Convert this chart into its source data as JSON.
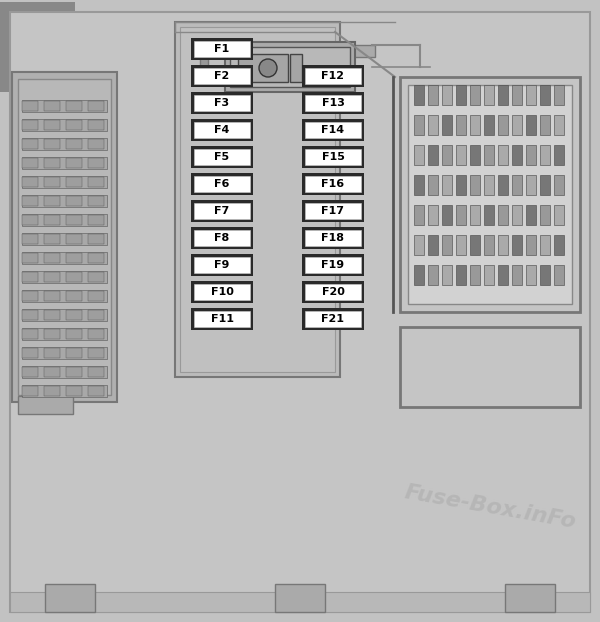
{
  "bg_color": "#c2c2c2",
  "title": "Fuse-Box.inFo",
  "title_color": "#b0b0b0",
  "title_fontsize": 16,
  "col1_fuses": [
    "F1",
    "F2",
    "F3",
    "F4",
    "F5",
    "F6",
    "F7",
    "F8",
    "F9",
    "F10",
    "F11"
  ],
  "col2_fuses": [
    "F12",
    "F13",
    "F14",
    "F15",
    "F16",
    "F17",
    "F18",
    "F19",
    "F20",
    "F21"
  ],
  "fuse_outer_color": "#2a2a2a",
  "fuse_inner_color": "#ffffff",
  "fuse_text_color": "#000000",
  "panel_bg": "#c2c2c2",
  "panel_edge": "#888888",
  "dark_edge": "#555555",
  "top_gray_rect": "#a0a0a0",
  "left_connector_bg": "#b5b5b5",
  "right_connector_bg": "#d0d0d0",
  "right_connector_inner": "#c8c8c8",
  "fuse_panel_bg": "#bbbbbb",
  "fuse_panel_edge": "#777777"
}
